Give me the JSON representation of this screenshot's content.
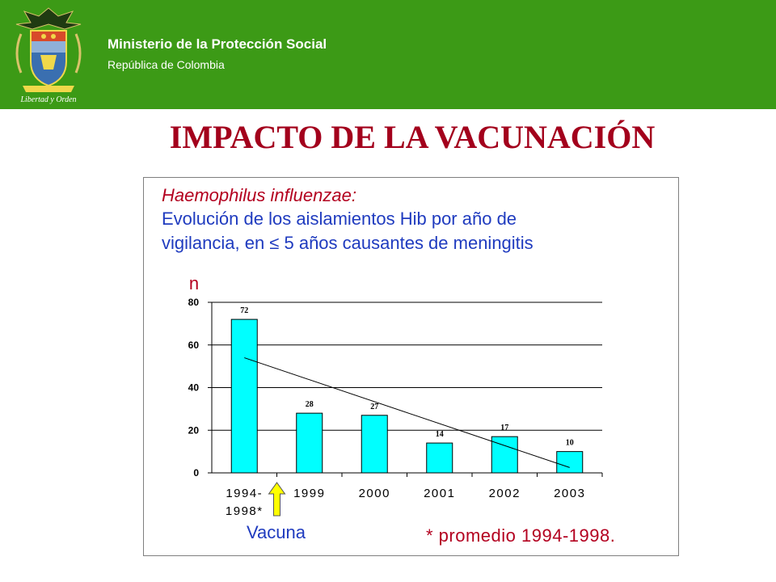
{
  "header": {
    "ministry": "Ministerio de la Protección Social",
    "republic": "República de Colombia",
    "motto": "Libertad y Orden",
    "background_color": "#3c9a16"
  },
  "page": {
    "title": "IMPACTO DE LA VACUNACIÓN",
    "title_color": "#a3001c"
  },
  "chart_data": {
    "type": "bar",
    "title_line1": "Haemophilus influenzae:",
    "title_line2": "Evolución de los aislamientos Hib por año de",
    "title_line3": "vigilancia, en ≤ 5 años causantes de meningitis",
    "ylabel": "n",
    "ylim": [
      0,
      80
    ],
    "yticks": [
      "0",
      "20",
      "40",
      "60",
      "80"
    ],
    "grid": true,
    "categories": [
      [
        "1994-",
        "1998*"
      ],
      [
        "1999"
      ],
      [
        "2000"
      ],
      [
        "2001"
      ],
      [
        "2002"
      ],
      [
        "2003"
      ]
    ],
    "values": [
      72,
      28,
      27,
      14,
      17,
      10
    ],
    "data_labels": [
      "72",
      "28",
      "27",
      "14",
      "17",
      "10"
    ],
    "bar_color": "#00ffff",
    "trendline": {
      "start": 54,
      "end": 2.5
    },
    "annotation_arrow": "Vacuna",
    "footnote": "* promedio 1994-1998."
  }
}
